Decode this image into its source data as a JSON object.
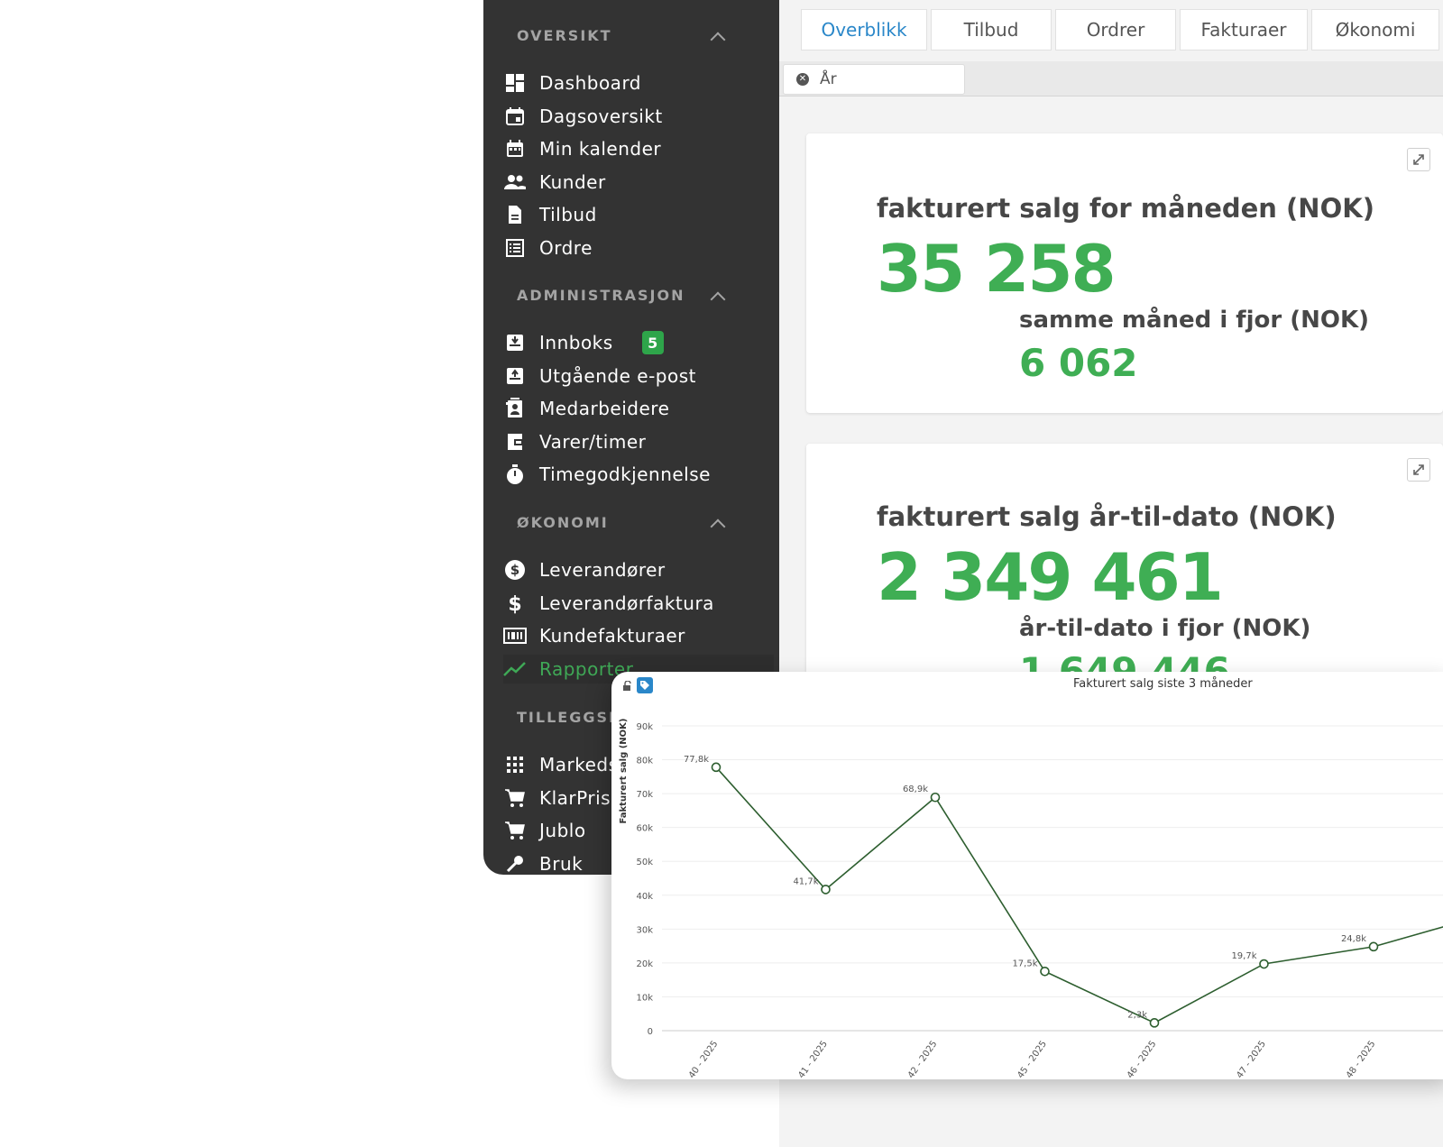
{
  "sidebar": {
    "sections": [
      {
        "title": "OVERSIKT",
        "items": [
          {
            "label": "Dashboard",
            "icon": "dashboard-icon"
          },
          {
            "label": "Dagsoversikt",
            "icon": "calendar-day-icon"
          },
          {
            "label": "Min kalender",
            "icon": "calendar-icon"
          },
          {
            "label": "Kunder",
            "icon": "users-icon"
          },
          {
            "label": "Tilbud",
            "icon": "document-icon"
          },
          {
            "label": "Ordre",
            "icon": "list-icon"
          }
        ]
      },
      {
        "title": "ADMINISTRASJON",
        "items": [
          {
            "label": "Innboks",
            "icon": "inbox-icon",
            "badge": "5"
          },
          {
            "label": "Utgående e-post",
            "icon": "outbox-icon"
          },
          {
            "label": "Medarbeidere",
            "icon": "employee-icon"
          },
          {
            "label": "Varer/timer",
            "icon": "wallet-icon"
          },
          {
            "label": "Timegodkjennelse",
            "icon": "stopwatch-icon"
          }
        ]
      },
      {
        "title": "ØKONOMI",
        "items": [
          {
            "label": "Leverandører",
            "icon": "dollar-circle-icon"
          },
          {
            "label": "Leverandørfaktura",
            "icon": "dollar-icon"
          },
          {
            "label": "Kundefakturaer",
            "icon": "invoice-icon"
          },
          {
            "label": "Rapporter",
            "icon": "trend-icon",
            "active": true
          }
        ]
      },
      {
        "title": "TILLEGGSMODULER",
        "items": [
          {
            "label": "Markedsplass",
            "icon": "grid-icon"
          },
          {
            "label": "KlarPris",
            "icon": "cart-icon"
          },
          {
            "label": "Jublo",
            "icon": "cart-icon"
          },
          {
            "label": "Bruk",
            "icon": "wrench-icon"
          }
        ]
      }
    ],
    "accent": "#3fa856"
  },
  "tabs": [
    {
      "label": "Overblikk",
      "active": true
    },
    {
      "label": "Tilbud"
    },
    {
      "label": "Ordrer"
    },
    {
      "label": "Fakturaer"
    },
    {
      "label": "Økonomi"
    }
  ],
  "filter": {
    "label": "År"
  },
  "card_month": {
    "title": "fakturert salg for måneden (NOK)",
    "value": "35 258",
    "compare_title": "samme måned i fjor (NOK)",
    "compare_value": "6 062"
  },
  "card_ytd": {
    "title": "fakturert salg år-til-dato (NOK)",
    "value": "2 349 461",
    "compare_title": "år-til-dato i fjor (NOK)",
    "compare_value": "1 649 446"
  },
  "chart_data": {
    "type": "line",
    "title": "Fakturert salg siste 3 måneder",
    "ylabel": "Fakturert salg (NOK)",
    "xlabel": "",
    "categories": [
      "40 - 2025",
      "41 - 2025",
      "42 - 2025",
      "45 - 2025",
      "46 - 2025",
      "47 - 2025",
      "48 - 2025",
      ""
    ],
    "values": [
      77800,
      41700,
      68900,
      17500,
      2300,
      19700,
      24800,
      34000
    ],
    "data_labels": [
      "77,8k",
      "41,7k",
      "68,9k",
      "17,5k",
      "2,3k",
      "19,7k",
      "24,8k",
      ""
    ],
    "yticks": [
      "0",
      "10k",
      "20k",
      "30k",
      "40k",
      "50k",
      "60k",
      "70k",
      "80k",
      "90k"
    ],
    "ylim": [
      0,
      90000
    ],
    "line_color": "#2d5e2f",
    "grid": true
  }
}
